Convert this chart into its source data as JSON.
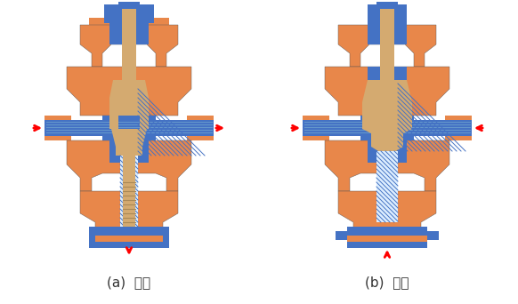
{
  "background_color": "#ffffff",
  "orange_color": "#E8874A",
  "blue_color": "#4472C4",
  "tan_color": "#D4AA70",
  "red_color": "#FF0000",
  "label_a": "(a)  分流",
  "label_b": "(b)  合流",
  "label_fontsize": 11,
  "fig_width": 5.82,
  "fig_height": 3.42
}
